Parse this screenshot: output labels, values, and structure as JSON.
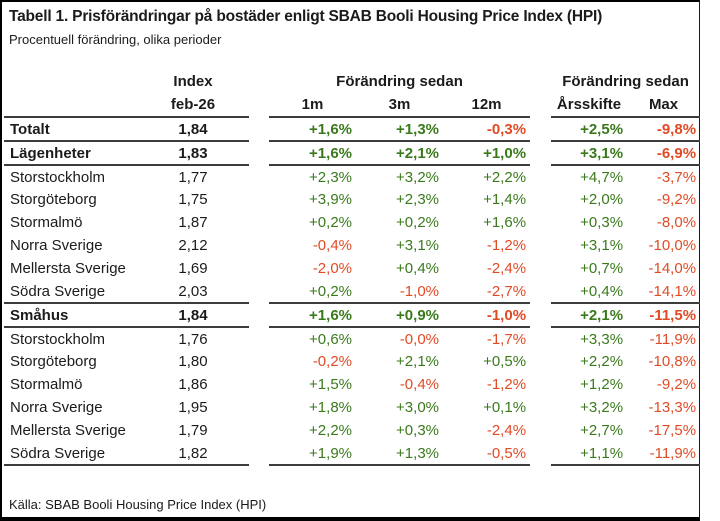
{
  "title": "Tabell 1. Prisförändringar på bostäder enligt SBAB Booli Housing Price Index (HPI)",
  "subtitle": "Procentuell förändring, olika perioder",
  "source": "Källa: SBAB Booli Housing Price Index (HPI)",
  "colors": {
    "positive": "#3a7a1c",
    "negative": "#e04b25",
    "text": "#1b1b1b",
    "rule": "#3c3c3c"
  },
  "table": {
    "header": {
      "index_label": "Index",
      "index_sub": "feb-26",
      "group1_label": "Förändring sedan",
      "group2_label": "Förändring sedan",
      "period_cols": [
        "1m",
        "3m",
        "12m"
      ],
      "summary_cols": [
        "Årsskifte",
        "Max"
      ]
    },
    "rows": [
      {
        "label": "Totalt",
        "bold": true,
        "index": "1,84",
        "values": [
          "+1,6%",
          "+1,3%",
          "-0,3%",
          "+2,5%",
          "-9,8%"
        ]
      },
      {
        "label": "Lägenheter",
        "bold": true,
        "index": "1,83",
        "values": [
          "+1,6%",
          "+2,1%",
          "+1,0%",
          "+3,1%",
          "-6,9%"
        ]
      },
      {
        "label": "Storstockholm",
        "bold": false,
        "index": "1,77",
        "values": [
          "+2,3%",
          "+3,2%",
          "+2,2%",
          "+4,7%",
          "-3,7%"
        ]
      },
      {
        "label": "Storgöteborg",
        "bold": false,
        "index": "1,75",
        "values": [
          "+3,9%",
          "+2,3%",
          "+1,4%",
          "+2,0%",
          "-9,2%"
        ]
      },
      {
        "label": "Stormalmö",
        "bold": false,
        "index": "1,87",
        "values": [
          "+0,2%",
          "+0,2%",
          "+1,6%",
          "+0,3%",
          "-8,0%"
        ]
      },
      {
        "label": "Norra Sverige",
        "bold": false,
        "index": "2,12",
        "values": [
          "-0,4%",
          "+3,1%",
          "-1,2%",
          "+3,1%",
          "-10,0%"
        ]
      },
      {
        "label": "Mellersta Sverige",
        "bold": false,
        "index": "1,69",
        "values": [
          "-2,0%",
          "+0,4%",
          "-2,4%",
          "+0,7%",
          "-14,0%"
        ]
      },
      {
        "label": "Södra Sverige",
        "bold": false,
        "index": "2,03",
        "values": [
          "+0,2%",
          "-1,0%",
          "-2,7%",
          "+0,4%",
          "-14,1%"
        ]
      },
      {
        "label": "Småhus",
        "bold": true,
        "index": "1,84",
        "values": [
          "+1,6%",
          "+0,9%",
          "-1,0%",
          "+2,1%",
          "-11,5%"
        ]
      },
      {
        "label": "Storstockholm",
        "bold": false,
        "index": "1,76",
        "values": [
          "+0,6%",
          "-0,0%",
          "-1,7%",
          "+3,3%",
          "-11,9%"
        ]
      },
      {
        "label": "Storgöteborg",
        "bold": false,
        "index": "1,80",
        "values": [
          "-0,2%",
          "+2,1%",
          "+0,5%",
          "+2,2%",
          "-10,8%"
        ]
      },
      {
        "label": "Stormalmö",
        "bold": false,
        "index": "1,86",
        "values": [
          "+1,5%",
          "-0,4%",
          "-1,2%",
          "+1,2%",
          "-9,2%"
        ]
      },
      {
        "label": "Norra Sverige",
        "bold": false,
        "index": "1,95",
        "values": [
          "+1,8%",
          "+3,0%",
          "+0,1%",
          "+3,2%",
          "-13,3%"
        ]
      },
      {
        "label": "Mellersta Sverige",
        "bold": false,
        "index": "1,79",
        "values": [
          "+2,2%",
          "+0,3%",
          "-2,4%",
          "+2,7%",
          "-17,5%"
        ]
      },
      {
        "label": "Södra Sverige",
        "bold": false,
        "index": "1,82",
        "values": [
          "+1,9%",
          "+1,3%",
          "-0,5%",
          "+1,1%",
          "-11,9%"
        ]
      }
    ]
  }
}
